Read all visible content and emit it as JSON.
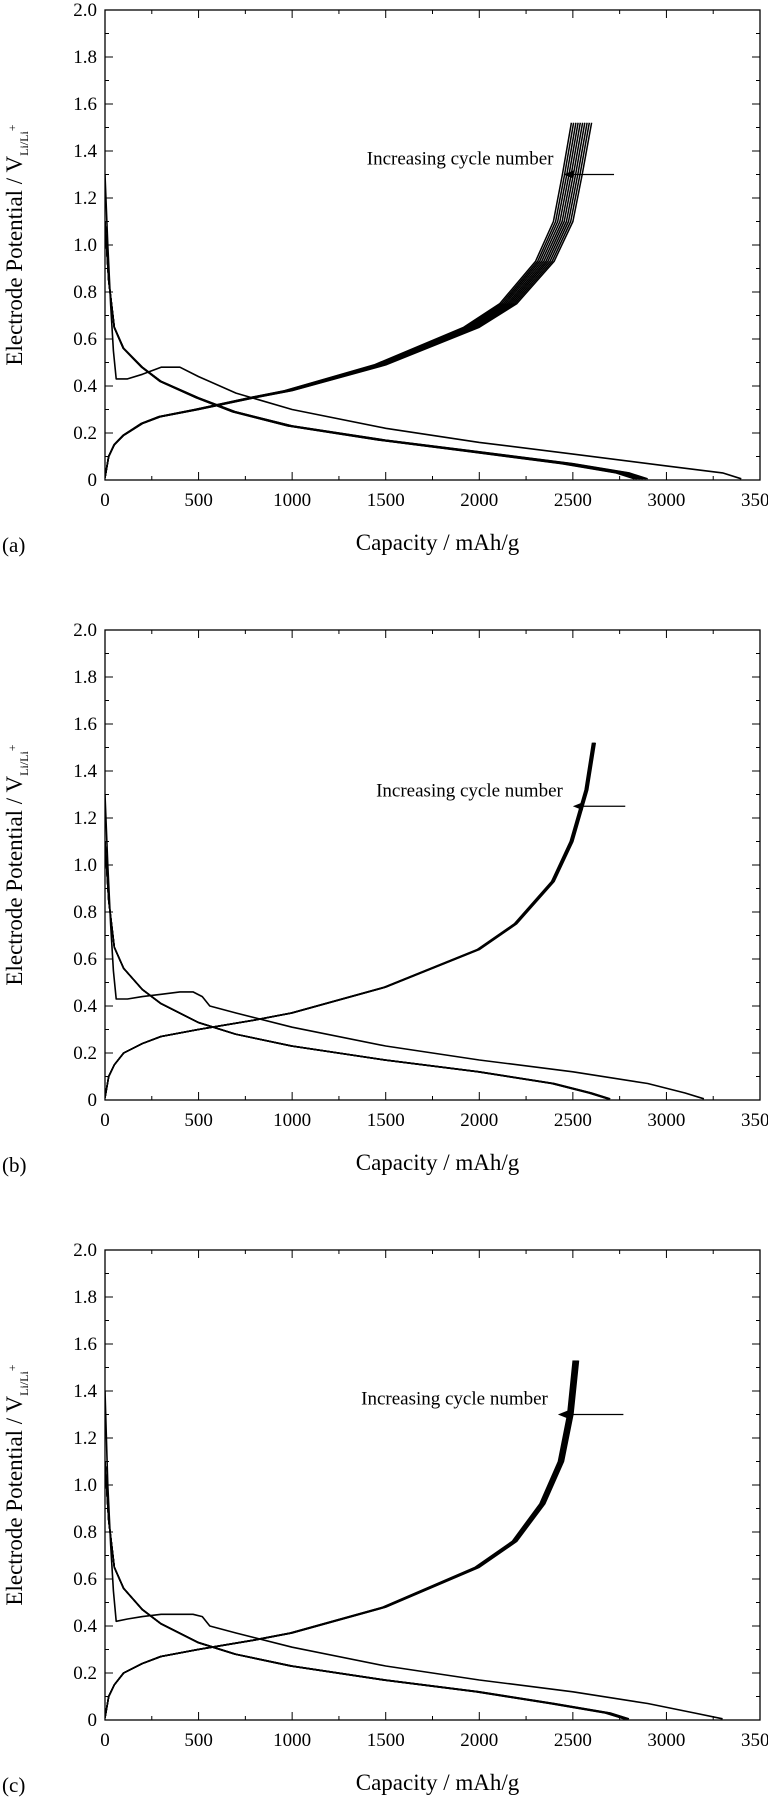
{
  "chart_data": [
    {
      "panel": "(a)",
      "type": "line",
      "xlabel": "Capacity / mAh/g",
      "ylabel": "Electrode Potential / V",
      "ylabel_sub": "Li/Li",
      "ylabel_sup": "+",
      "xlim": [
        0,
        3500
      ],
      "ylim": [
        0,
        2.0
      ],
      "xticks": [
        "0",
        "500",
        "1000",
        "1500",
        "2000",
        "2500",
        "3000",
        "3500"
      ],
      "yticks": [
        "0",
        "0.2",
        "0.4",
        "0.6",
        "0.8",
        "1.0",
        "1.2",
        "1.4",
        "1.6",
        "1.8",
        "2.0"
      ],
      "grid": false,
      "annotation": {
        "text": "Increasing cycle number",
        "arrow_from": [
          2720,
          1.3
        ],
        "arrow_to": [
          2450,
          1.3
        ]
      },
      "series": [
        {
          "role": "first-discharge",
          "x": [
            0,
            15,
            30,
            45,
            60,
            120,
            200,
            300,
            400,
            500,
            700,
            1000,
            1500,
            2000,
            2500,
            3000,
            3300,
            3400
          ],
          "y": [
            1.3,
            1.0,
            0.75,
            0.55,
            0.43,
            0.43,
            0.45,
            0.48,
            0.48,
            0.44,
            0.37,
            0.3,
            0.22,
            0.16,
            0.11,
            0.06,
            0.03,
            0.005
          ]
        },
        {
          "role": "discharge-cycles",
          "x": [
            0,
            20,
            50,
            100,
            200,
            300,
            500,
            700,
            1000,
            1500,
            2000,
            2500,
            2800,
            2900
          ],
          "y": [
            1.1,
            0.85,
            0.65,
            0.56,
            0.48,
            0.42,
            0.35,
            0.29,
            0.23,
            0.17,
            0.12,
            0.07,
            0.03,
            0.005
          ],
          "x_shift_per_cycle": -8,
          "cycles": 10
        },
        {
          "role": "charge-cycles",
          "x": [
            0,
            20,
            50,
            100,
            200,
            300,
            500,
            800,
            1000,
            1500,
            2000,
            2200,
            2400,
            2500,
            2550,
            2600
          ],
          "y": [
            0.01,
            0.1,
            0.15,
            0.19,
            0.24,
            0.27,
            0.3,
            0.35,
            0.38,
            0.49,
            0.65,
            0.75,
            0.93,
            1.1,
            1.3,
            1.52
          ],
          "x_shift_per_cycle": -12,
          "cycles": 10
        }
      ]
    },
    {
      "panel": "(b)",
      "type": "line",
      "xlabel": "Capacity / mAh/g",
      "ylabel": "Electrode Potential / V",
      "ylabel_sub": "Li/Li",
      "ylabel_sup": "+",
      "xlim": [
        0,
        3500
      ],
      "ylim": [
        0,
        2.0
      ],
      "xticks": [
        "0",
        "500",
        "1000",
        "1500",
        "2000",
        "2500",
        "3000",
        "3500"
      ],
      "yticks": [
        "0",
        "0.2",
        "0.4",
        "0.6",
        "0.8",
        "1.0",
        "1.2",
        "1.4",
        "1.6",
        "1.8",
        "2.0"
      ],
      "grid": false,
      "annotation": {
        "text": "Increasing cycle number",
        "arrow_from": [
          2780,
          1.25
        ],
        "arrow_to": [
          2500,
          1.25
        ]
      },
      "series": [
        {
          "role": "first-discharge",
          "x": [
            0,
            15,
            30,
            45,
            60,
            120,
            200,
            300,
            400,
            470,
            520,
            560,
            700,
            1000,
            1500,
            2000,
            2500,
            2900,
            3100,
            3200
          ],
          "y": [
            1.3,
            1.0,
            0.75,
            0.55,
            0.43,
            0.43,
            0.44,
            0.45,
            0.46,
            0.46,
            0.44,
            0.4,
            0.37,
            0.31,
            0.23,
            0.17,
            0.12,
            0.07,
            0.03,
            0.005
          ]
        },
        {
          "role": "discharge-cycles",
          "x": [
            0,
            20,
            50,
            100,
            200,
            300,
            500,
            700,
            1000,
            1500,
            2000,
            2400,
            2600,
            2700
          ],
          "y": [
            1.1,
            0.85,
            0.65,
            0.56,
            0.47,
            0.41,
            0.33,
            0.28,
            0.23,
            0.17,
            0.12,
            0.07,
            0.03,
            0.005
          ],
          "x_shift_per_cycle": -3,
          "cycles": 6
        },
        {
          "role": "charge-cycles",
          "x": [
            0,
            20,
            50,
            100,
            200,
            300,
            500,
            800,
            1000,
            1500,
            2000,
            2200,
            2400,
            2500,
            2580,
            2620
          ],
          "y": [
            0.01,
            0.1,
            0.15,
            0.2,
            0.24,
            0.27,
            0.3,
            0.34,
            0.37,
            0.48,
            0.64,
            0.75,
            0.93,
            1.1,
            1.32,
            1.52
          ],
          "x_shift_per_cycle": -3,
          "cycles": 6
        }
      ]
    },
    {
      "panel": "(c)",
      "type": "line",
      "xlabel": "Capacity / mAh/g",
      "ylabel": "Electrode Potential / V",
      "ylabel_sub": "Li/Li",
      "ylabel_sup": "+",
      "xlim": [
        0,
        3500
      ],
      "ylim": [
        0,
        2.0
      ],
      "xticks": [
        "0",
        "500",
        "1000",
        "1500",
        "2000",
        "2500",
        "3000",
        "3500"
      ],
      "yticks": [
        "0",
        "0.2",
        "0.4",
        "0.6",
        "0.8",
        "1.0",
        "1.2",
        "1.4",
        "1.6",
        "1.8",
        "2.0"
      ],
      "grid": false,
      "annotation": {
        "text": "Increasing cycle number",
        "arrow_from": [
          2770,
          1.3
        ],
        "arrow_to": [
          2420,
          1.3
        ]
      },
      "series": [
        {
          "role": "first-discharge",
          "x": [
            0,
            15,
            30,
            45,
            60,
            120,
            200,
            300,
            400,
            470,
            520,
            560,
            700,
            1000,
            1500,
            2000,
            2500,
            2900,
            3150,
            3300
          ],
          "y": [
            1.4,
            1.0,
            0.75,
            0.55,
            0.42,
            0.43,
            0.44,
            0.45,
            0.45,
            0.45,
            0.44,
            0.4,
            0.37,
            0.31,
            0.23,
            0.17,
            0.12,
            0.07,
            0.03,
            0.005
          ]
        },
        {
          "role": "discharge-cycles",
          "x": [
            0,
            20,
            50,
            100,
            200,
            300,
            500,
            700,
            1000,
            1500,
            2000,
            2400,
            2700,
            2800
          ],
          "y": [
            1.1,
            0.85,
            0.65,
            0.56,
            0.47,
            0.41,
            0.33,
            0.28,
            0.23,
            0.17,
            0.12,
            0.07,
            0.03,
            0.005
          ],
          "x_shift_per_cycle": -4,
          "cycles": 8
        },
        {
          "role": "charge-cycles",
          "x": [
            0,
            20,
            50,
            100,
            200,
            300,
            500,
            800,
            1000,
            1500,
            2000,
            2200,
            2350,
            2450,
            2500,
            2530
          ],
          "y": [
            0.01,
            0.1,
            0.15,
            0.2,
            0.24,
            0.27,
            0.3,
            0.34,
            0.37,
            0.48,
            0.65,
            0.76,
            0.92,
            1.1,
            1.3,
            1.53
          ],
          "x_shift_per_cycle": -4,
          "cycles": 8
        }
      ]
    }
  ]
}
